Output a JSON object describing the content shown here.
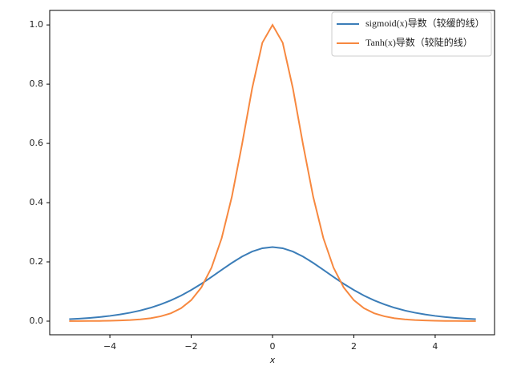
{
  "chart_data": {
    "type": "line",
    "x_label": "x",
    "x": [
      -5,
      -4.75,
      -4.5,
      -4.25,
      -4,
      -3.75,
      -3.5,
      -3.25,
      -3,
      -2.75,
      -2.5,
      -2.25,
      -2,
      -1.75,
      -1.5,
      -1.25,
      -1,
      -0.75,
      -0.5,
      -0.25,
      0,
      0.25,
      0.5,
      0.75,
      1,
      1.25,
      1.5,
      1.75,
      2,
      2.25,
      2.5,
      2.75,
      3,
      3.25,
      3.5,
      3.75,
      4,
      4.25,
      4.5,
      4.75,
      5
    ],
    "series": [
      {
        "name": "sigmoid(x)导数（较缓的线）",
        "color": "#3b7db8",
        "values": [
          0.0066,
          0.0085,
          0.0109,
          0.0139,
          0.0177,
          0.0225,
          0.0285,
          0.0359,
          0.0452,
          0.0565,
          0.0701,
          0.0862,
          0.105,
          0.1261,
          0.1491,
          0.1731,
          0.1966,
          0.2179,
          0.235,
          0.2461,
          0.25,
          0.2461,
          0.235,
          0.2179,
          0.1966,
          0.1731,
          0.1491,
          0.1261,
          0.105,
          0.0862,
          0.0701,
          0.0565,
          0.0452,
          0.0359,
          0.0285,
          0.0225,
          0.0177,
          0.0139,
          0.0109,
          0.0085,
          0.0066
        ]
      },
      {
        "name": "Tanh(x)导数（较陡的线）",
        "color": "#f7883f",
        "values": [
          0.0002,
          0.0003,
          0.0005,
          0.0008,
          0.0013,
          0.0022,
          0.0036,
          0.006,
          0.0099,
          0.0163,
          0.0266,
          0.0435,
          0.0707,
          0.1138,
          0.1807,
          0.2804,
          0.42,
          0.5967,
          0.7864,
          0.94,
          1,
          0.94,
          0.7864,
          0.5967,
          0.42,
          0.2804,
          0.1807,
          0.1138,
          0.0707,
          0.0435,
          0.0266,
          0.0163,
          0.0099,
          0.006,
          0.0036,
          0.0022,
          0.0013,
          0.0008,
          0.0005,
          0.0003,
          0.0002
        ]
      }
    ],
    "xlim": [
      -5.48,
      5.46
    ],
    "ylim": [
      -0.046,
      1.049
    ],
    "xticks": [
      {
        "value": -4,
        "label": "−4"
      },
      {
        "value": -2,
        "label": "−2"
      },
      0,
      2,
      4
    ],
    "yticks": [
      {
        "value": 0,
        "label": "0.0"
      },
      0.2,
      0.4,
      0.6,
      0.8,
      {
        "value": 1,
        "label": "1.0"
      }
    ],
    "grid": false,
    "legend": "upper right"
  }
}
